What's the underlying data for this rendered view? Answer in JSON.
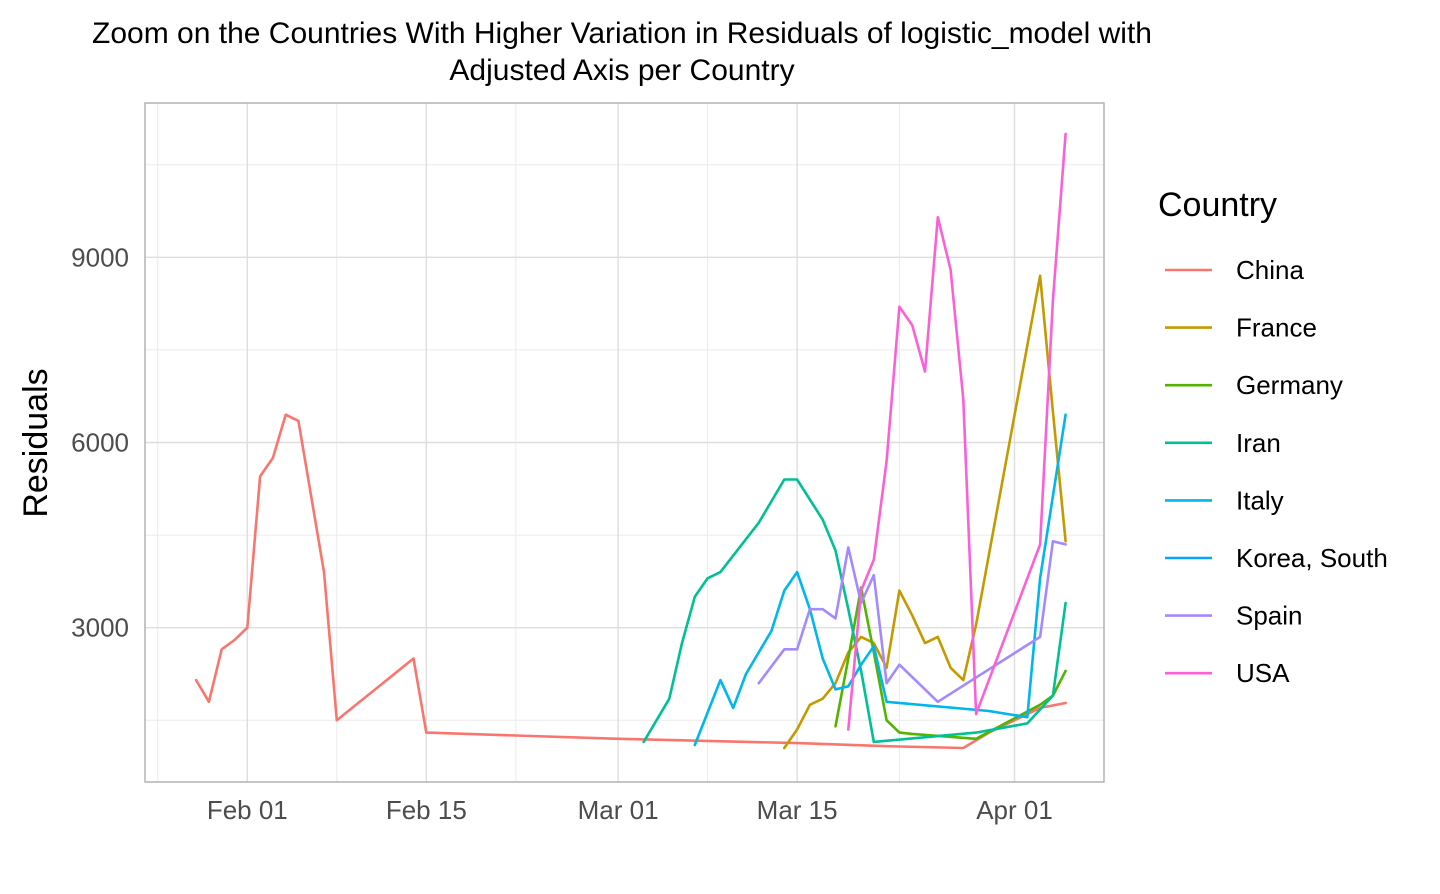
{
  "chart_data": {
    "type": "line",
    "title_lines": [
      "Zoom on the Countries With Higher Variation in Residuals of logistic_model with",
      "Adjusted Axis per Country"
    ],
    "xlabel": "",
    "ylabel": "Residuals",
    "x_ticks": [
      {
        "date": "2020-02-01",
        "label": "Feb 01"
      },
      {
        "date": "2020-02-15",
        "label": "Feb 15"
      },
      {
        "date": "2020-03-01",
        "label": "Mar 01"
      },
      {
        "date": "2020-03-15",
        "label": "Mar 15"
      },
      {
        "date": "2020-04-01",
        "label": "Apr 01"
      }
    ],
    "x_minor_dates": [
      "2020-01-25",
      "2020-02-08",
      "2020-02-22",
      "2020-03-08",
      "2020-03-23",
      "2020-04-08"
    ],
    "xlim": [
      "2020-01-24",
      "2020-04-08"
    ],
    "y_ticks": [
      {
        "value": 3000,
        "label": "3000"
      },
      {
        "value": 6000,
        "label": "6000"
      },
      {
        "value": 9000,
        "label": "9000"
      }
    ],
    "y_minor": [
      1500,
      4500,
      7500,
      10500
    ],
    "ylim": [
      500,
      11500
    ],
    "grid": true,
    "legend": {
      "title": "Country",
      "position": "right"
    },
    "series": [
      {
        "name": "China",
        "color": "#F8766D",
        "points": [
          [
            "2020-01-28",
            2150
          ],
          [
            "2020-01-29",
            1800
          ],
          [
            "2020-01-30",
            2650
          ],
          [
            "2020-01-31",
            2800
          ],
          [
            "2020-02-01",
            3000
          ],
          [
            "2020-02-02",
            5450
          ],
          [
            "2020-02-03",
            5750
          ],
          [
            "2020-02-04",
            6450
          ],
          [
            "2020-02-05",
            6350
          ],
          [
            "2020-02-07",
            3900
          ],
          [
            "2020-02-08",
            1500
          ],
          [
            "2020-02-14",
            2500
          ],
          [
            "2020-02-15",
            1300
          ],
          [
            "2020-03-01",
            1200
          ],
          [
            "2020-03-15",
            1130
          ],
          [
            "2020-03-22",
            1080
          ],
          [
            "2020-03-28",
            1050
          ],
          [
            "2020-03-30",
            1300
          ],
          [
            "2020-04-03",
            1700
          ],
          [
            "2020-04-05",
            1780
          ]
        ]
      },
      {
        "name": "France",
        "color": "#C49A00",
        "points": [
          [
            "2020-03-14",
            1050
          ],
          [
            "2020-03-15",
            1350
          ],
          [
            "2020-03-16",
            1750
          ],
          [
            "2020-03-17",
            1850
          ],
          [
            "2020-03-18",
            2100
          ],
          [
            "2020-03-19",
            2600
          ],
          [
            "2020-03-20",
            2850
          ],
          [
            "2020-03-21",
            2750
          ],
          [
            "2020-03-22",
            2350
          ],
          [
            "2020-03-23",
            3600
          ],
          [
            "2020-03-24",
            3200
          ],
          [
            "2020-03-25",
            2750
          ],
          [
            "2020-03-26",
            2850
          ],
          [
            "2020-03-27",
            2350
          ],
          [
            "2020-03-28",
            2150
          ],
          [
            "2020-03-29",
            3050
          ],
          [
            "2020-04-03",
            8700
          ],
          [
            "2020-04-04",
            6500
          ],
          [
            "2020-04-05",
            4400
          ]
        ]
      },
      {
        "name": "Germany",
        "color": "#53B400",
        "points": [
          [
            "2020-03-18",
            1400
          ],
          [
            "2020-03-19",
            2500
          ],
          [
            "2020-03-20",
            3650
          ],
          [
            "2020-03-21",
            2600
          ],
          [
            "2020-03-22",
            1500
          ],
          [
            "2020-03-23",
            1300
          ],
          [
            "2020-03-24",
            1280
          ],
          [
            "2020-03-29",
            1200
          ],
          [
            "2020-04-03",
            1750
          ],
          [
            "2020-04-04",
            1900
          ],
          [
            "2020-04-05",
            2300
          ]
        ]
      },
      {
        "name": "Iran",
        "color": "#00C094",
        "points": [
          [
            "2020-03-03",
            1150
          ],
          [
            "2020-03-05",
            1850
          ],
          [
            "2020-03-06",
            2750
          ],
          [
            "2020-03-07",
            3500
          ],
          [
            "2020-03-08",
            3800
          ],
          [
            "2020-03-09",
            3900
          ],
          [
            "2020-03-12",
            4700
          ],
          [
            "2020-03-14",
            5400
          ],
          [
            "2020-03-15",
            5400
          ],
          [
            "2020-03-17",
            4750
          ],
          [
            "2020-03-18",
            4250
          ],
          [
            "2020-03-19",
            3300
          ],
          [
            "2020-03-20",
            2300
          ],
          [
            "2020-03-21",
            1150
          ],
          [
            "2020-03-29",
            1300
          ],
          [
            "2020-04-02",
            1450
          ],
          [
            "2020-04-04",
            1900
          ],
          [
            "2020-04-05",
            3400
          ]
        ]
      },
      {
        "name": "Italy",
        "color": "#00B6EB",
        "points": [
          [
            "2020-03-07",
            1100
          ],
          [
            "2020-03-09",
            2150
          ],
          [
            "2020-03-10",
            1700
          ],
          [
            "2020-03-11",
            2250
          ],
          [
            "2020-03-13",
            2950
          ],
          [
            "2020-03-14",
            3600
          ],
          [
            "2020-03-15",
            3900
          ],
          [
            "2020-03-16",
            3300
          ],
          [
            "2020-03-17",
            2500
          ],
          [
            "2020-03-18",
            2000
          ],
          [
            "2020-03-19",
            2050
          ],
          [
            "2020-03-20",
            2400
          ],
          [
            "2020-03-21",
            2700
          ],
          [
            "2020-03-22",
            1800
          ],
          [
            "2020-03-30",
            1650
          ],
          [
            "2020-04-02",
            1550
          ],
          [
            "2020-04-03",
            3800
          ],
          [
            "2020-04-05",
            6450
          ]
        ]
      },
      {
        "name": "Korea, South",
        "color": "#06A4FF",
        "points": []
      },
      {
        "name": "Spain",
        "color": "#A58AFF",
        "points": [
          [
            "2020-03-12",
            2100
          ],
          [
            "2020-03-14",
            2650
          ],
          [
            "2020-03-15",
            2650
          ],
          [
            "2020-03-16",
            3300
          ],
          [
            "2020-03-17",
            3300
          ],
          [
            "2020-03-18",
            3150
          ],
          [
            "2020-03-19",
            4300
          ],
          [
            "2020-03-20",
            3400
          ],
          [
            "2020-03-21",
            3850
          ],
          [
            "2020-03-22",
            2100
          ],
          [
            "2020-03-23",
            2400
          ],
          [
            "2020-03-25",
            2000
          ],
          [
            "2020-03-26",
            1800
          ],
          [
            "2020-04-03",
            2850
          ],
          [
            "2020-04-04",
            4400
          ],
          [
            "2020-04-05",
            4350
          ]
        ]
      },
      {
        "name": "USA",
        "color": "#FB61D7",
        "points": [
          [
            "2020-03-19",
            1350
          ],
          [
            "2020-03-20",
            3600
          ],
          [
            "2020-03-21",
            4100
          ],
          [
            "2020-03-22",
            5700
          ],
          [
            "2020-03-23",
            8200
          ],
          [
            "2020-03-24",
            7900
          ],
          [
            "2020-03-25",
            7150
          ],
          [
            "2020-03-26",
            9650
          ],
          [
            "2020-03-27",
            8800
          ],
          [
            "2020-03-28",
            6700
          ],
          [
            "2020-03-29",
            1600
          ],
          [
            "2020-04-03",
            4350
          ],
          [
            "2020-04-04",
            8300
          ],
          [
            "2020-04-05",
            11000
          ]
        ]
      }
    ]
  }
}
